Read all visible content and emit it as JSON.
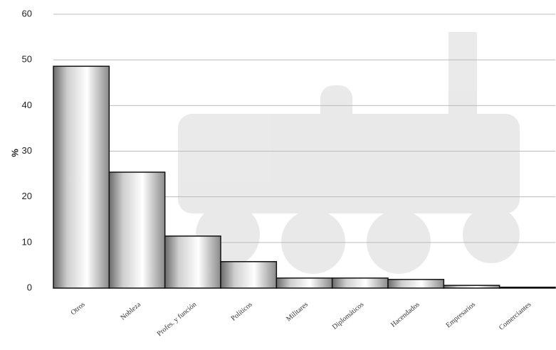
{
  "chart_data": {
    "type": "bar",
    "ylabel": "%",
    "categories": [
      "Otros",
      "Nobleza",
      "Profes. y función",
      "Políticos",
      "Militares",
      "Diplomáticos",
      "Hacendados",
      "Empresarios",
      "Comerciantes"
    ],
    "values": [
      48.6,
      25.4,
      11.4,
      5.8,
      2.2,
      2.2,
      1.9,
      0.6,
      0.2
    ],
    "color": "#c8c8c8",
    "ylim": [
      0,
      60
    ],
    "yticks": [
      0,
      10,
      20,
      30,
      40,
      50,
      60
    ],
    "grid": true
  }
}
